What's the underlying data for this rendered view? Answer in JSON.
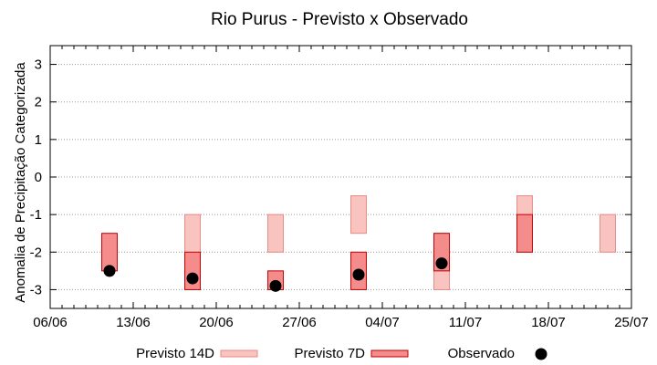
{
  "chart_data": {
    "type": "range-bar-with-points",
    "title": "Rio Purus - Previsto x Observado",
    "xlabel": "",
    "ylabel": "Anomalia de Precipitação Categorizada",
    "xlim": [
      "2023-06-06",
      "2023-07-25"
    ],
    "ylim": [
      -3.5,
      3.5
    ],
    "x_ticks": [
      "06/06",
      "13/06",
      "20/06",
      "27/06",
      "04/07",
      "11/07",
      "18/07",
      "25/07"
    ],
    "x_tick_dates": [
      "2023-06-06",
      "2023-06-13",
      "2023-06-20",
      "2023-06-27",
      "2023-07-04",
      "2023-07-11",
      "2023-07-18",
      "2023-07-25"
    ],
    "y_ticks": [
      3,
      2,
      1,
      0,
      -1,
      -2,
      -3
    ],
    "grid": "horizontal dotted",
    "legend_position": "bottom",
    "series": [
      {
        "name": "Previsto 14D",
        "kind": "range",
        "fill": "#f9c4c0",
        "stroke": "#e58a84",
        "ranges": [
          {
            "date": "2023-06-18",
            "low": -3,
            "high": -1
          },
          {
            "date": "2023-06-25",
            "low": -2,
            "high": -1
          },
          {
            "date": "2023-07-02",
            "low": -1.5,
            "high": -0.5
          },
          {
            "date": "2023-07-09",
            "low": -3,
            "high": -1.5
          },
          {
            "date": "2023-07-16",
            "low": -2,
            "high": -0.5
          },
          {
            "date": "2023-07-23",
            "low": -2,
            "high": -1
          }
        ]
      },
      {
        "name": "Previsto 7D",
        "kind": "range",
        "fill": "#f58c8c",
        "stroke": "#c00000",
        "ranges": [
          {
            "date": "2023-06-11",
            "low": -2.5,
            "high": -1.5
          },
          {
            "date": "2023-06-18",
            "low": -3,
            "high": -2
          },
          {
            "date": "2023-06-25",
            "low": -3,
            "high": -2.5
          },
          {
            "date": "2023-07-02",
            "low": -3,
            "high": -2
          },
          {
            "date": "2023-07-09",
            "low": -2.5,
            "high": -1.5
          },
          {
            "date": "2023-07-16",
            "low": -2,
            "high": -1
          }
        ]
      },
      {
        "name": "Observado",
        "kind": "point",
        "color": "#000000",
        "points": [
          {
            "date": "2023-06-11",
            "value": -2.5
          },
          {
            "date": "2023-06-18",
            "value": -2.7
          },
          {
            "date": "2023-06-25",
            "value": -2.9
          },
          {
            "date": "2023-07-02",
            "value": -2.6
          },
          {
            "date": "2023-07-09",
            "value": -2.3
          }
        ]
      }
    ]
  }
}
